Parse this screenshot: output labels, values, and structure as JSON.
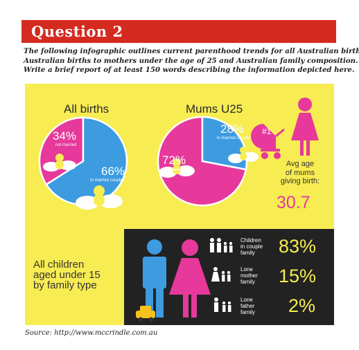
{
  "header": {
    "title": "Question 2",
    "instructions": [
      "The following infographic outlines current parenthood trends  for all Australian births,",
      "Australian births to mothers under the age of 25 and Australian family composition.",
      "Write a brief report of at least 150 words describing the information depicted here."
    ]
  },
  "infographic": {
    "background_color": "#f7ec52",
    "pink": "#e6399b",
    "blue": "#3d9be0",
    "dark": "#222222",
    "badge": "#1",
    "avg_age_label": [
      "Avg age",
      "of mums",
      "giving birth:"
    ],
    "avg_age_value": "30.7",
    "all_children_label": [
      "All children",
      "aged under 15",
      "by family type"
    ],
    "icons": [
      "hands-baby-icon",
      "pram-icon",
      "woman-icon",
      "man-icon",
      "toy-car-icon",
      "family-icon"
    ]
  },
  "chart_data": [
    {
      "type": "pie",
      "title": "All births",
      "slices": [
        {
          "label": "not married",
          "value": 34,
          "display": "34%",
          "color": "#e6399b"
        },
        {
          "label": "to married couples",
          "value": 66,
          "display": "66%",
          "color": "#3d9be0"
        }
      ]
    },
    {
      "type": "pie",
      "title": "Mums U25",
      "slices": [
        {
          "label": "not married",
          "value": 72,
          "display": "72%",
          "color": "#e6399b"
        },
        {
          "label": "to married couples",
          "value": 28,
          "display": "28%",
          "color": "#3d9be0"
        }
      ]
    },
    {
      "type": "table",
      "title": "",
      "rows": [
        {
          "label": [
            "Children",
            "in couple",
            "family"
          ],
          "value": 83,
          "display": "83%"
        },
        {
          "label": [
            "Lone",
            "mother",
            "family"
          ],
          "value": 15,
          "display": "15%"
        },
        {
          "label": [
            "Lone",
            "father",
            "family"
          ],
          "value": 2,
          "display": "2%"
        }
      ]
    }
  ],
  "source": "Source: http://www.mccrindle.com.au"
}
